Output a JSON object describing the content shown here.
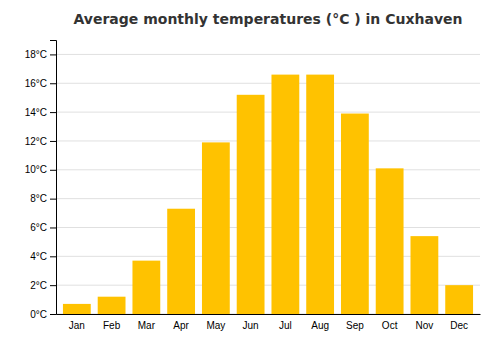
{
  "chart_data": {
    "type": "bar",
    "title": "Average monthly temperatures (°C ) in Cuxhaven",
    "categories": [
      "Jan",
      "Feb",
      "Mar",
      "Apr",
      "May",
      "Jun",
      "Jul",
      "Aug",
      "Sep",
      "Oct",
      "Nov",
      "Dec"
    ],
    "values": [
      0.7,
      1.2,
      3.7,
      7.3,
      11.9,
      15.2,
      16.6,
      16.6,
      13.9,
      10.1,
      5.4,
      2.0
    ],
    "color": "#FFC200",
    "ylim": [
      0,
      19.0
    ],
    "yticks": [
      {
        "value": 0,
        "label": "0°C"
      },
      {
        "value": 2,
        "label": "2°C"
      },
      {
        "value": 4,
        "label": "4°C"
      },
      {
        "value": 6,
        "label": "6°C"
      },
      {
        "value": 8,
        "label": "8°C"
      },
      {
        "value": 10,
        "label": "10°C"
      },
      {
        "value": 12,
        "label": "12°C"
      },
      {
        "value": 14,
        "label": "14°C"
      },
      {
        "value": 16,
        "label": "16°C"
      },
      {
        "value": 18,
        "label": "18°C"
      }
    ],
    "grid": true
  }
}
